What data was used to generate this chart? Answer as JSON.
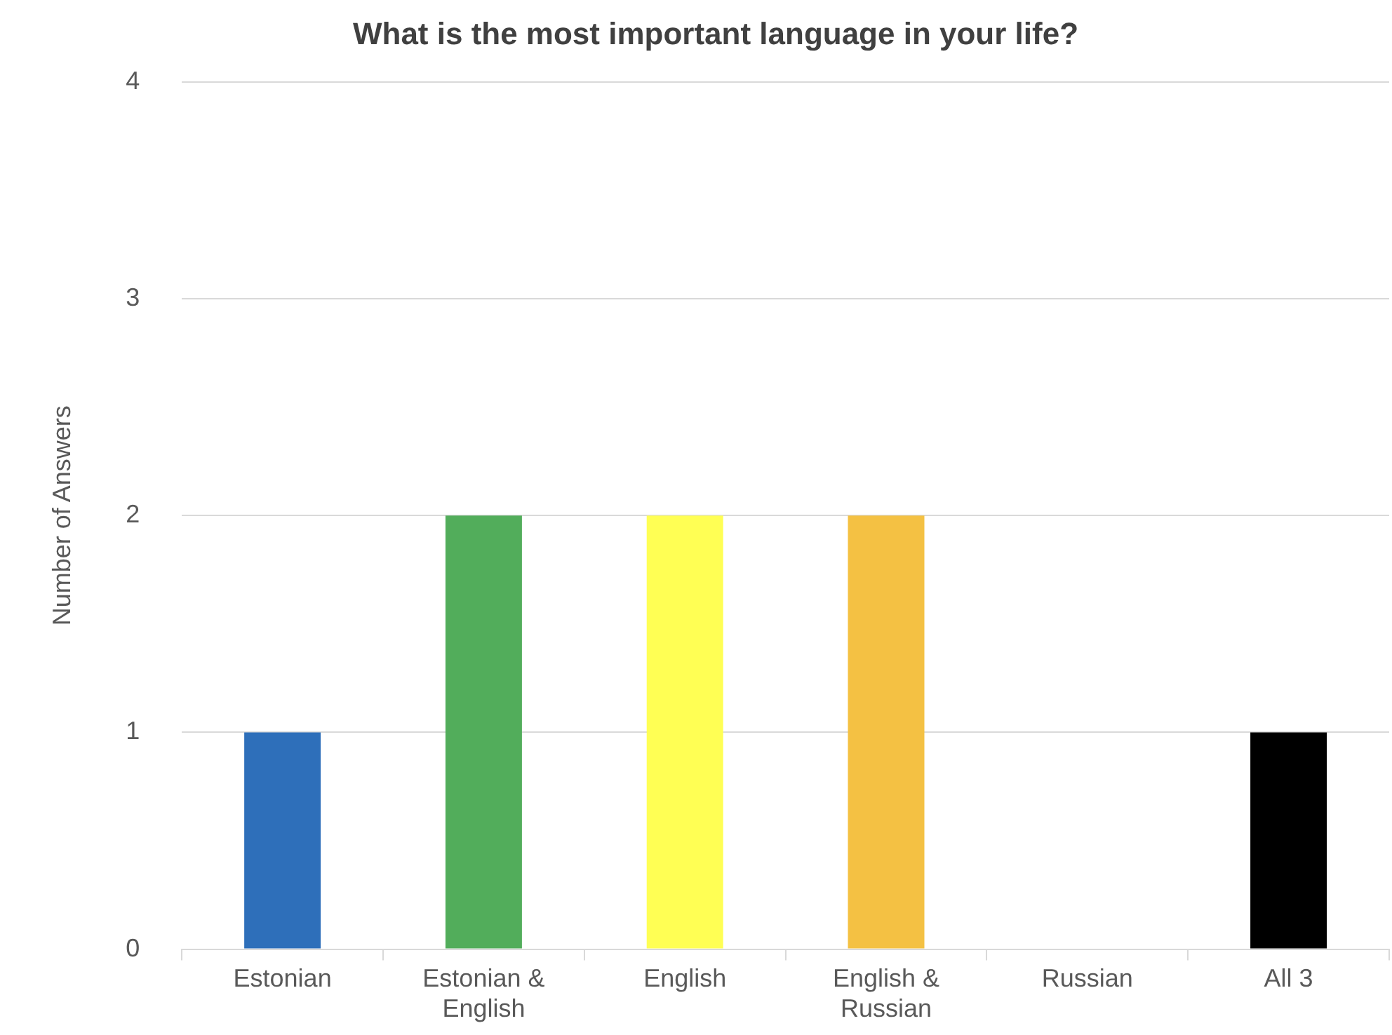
{
  "chart_data": {
    "type": "bar",
    "title": "What is the most important language in your life?",
    "ylabel": "Number of Answers",
    "categories": [
      "Estonian",
      "Estonian & English",
      "English",
      "English & Russian",
      "Russian",
      "All 3"
    ],
    "values": [
      1,
      2,
      2,
      2,
      0,
      1
    ],
    "colors": [
      "#2e6fba",
      "#52ad5b",
      "#ffff54",
      "#f4c143",
      "#a5a5a5",
      "#000000"
    ],
    "ylim": [
      0,
      4
    ],
    "yticks": [
      0,
      1,
      2,
      3,
      4
    ],
    "grid": "y",
    "legend": false
  }
}
